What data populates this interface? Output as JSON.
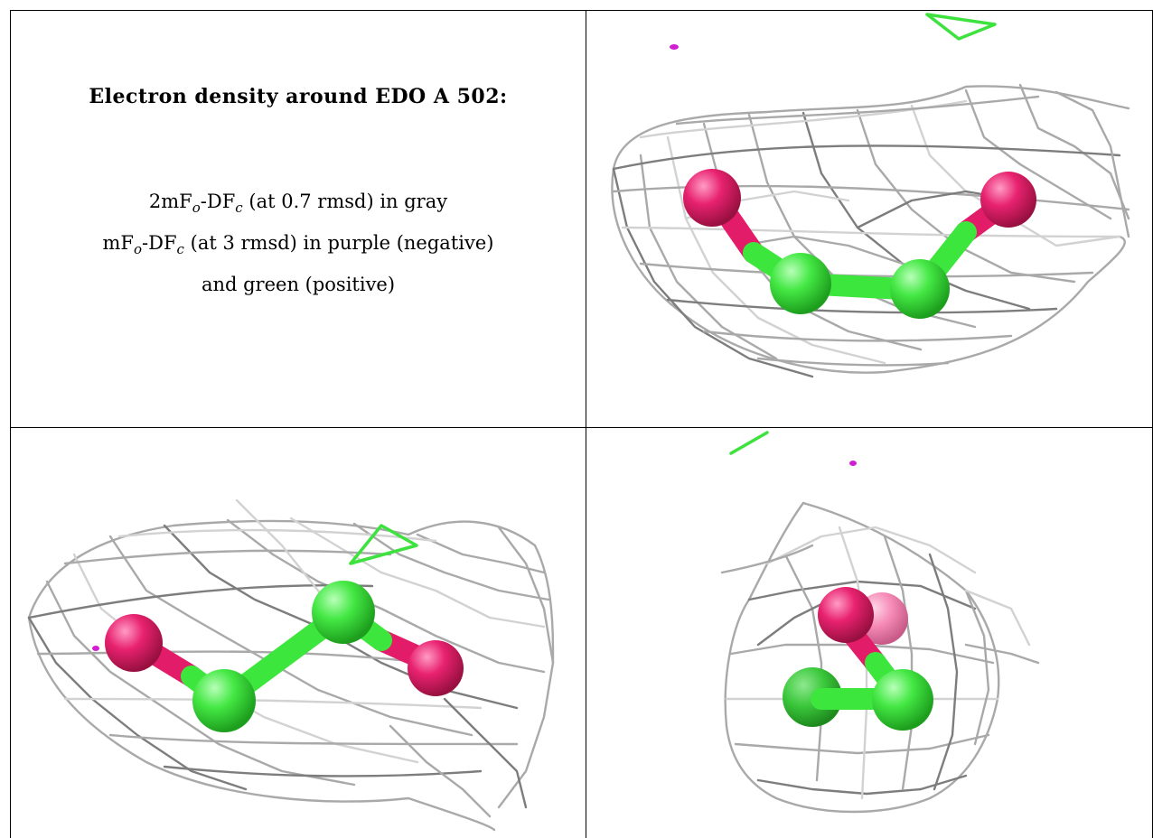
{
  "title": "Electron density around EDO A 502:",
  "legend": {
    "line1_prefix": "2mF",
    "line1_sub_o": "o",
    "line1_mid": "-DF",
    "line1_sub_c": "c",
    "line1_suffix": " (at 0.7 rmsd) in gray",
    "line2_prefix": "mF",
    "line2_sub_o": "o",
    "line2_mid": "-DF",
    "line2_sub_c": "c",
    "line2_suffix": " (at 3 rmsd) in purple (negative)",
    "line3": "and green (positive)"
  },
  "colors": {
    "mesh": "#a9a9a9",
    "carbon": "#3ee23e",
    "oxygen": "#e21c68",
    "negative_density": "#d21ed2",
    "positive_density": "#3ee23e",
    "border": "#000000"
  },
  "views": [
    {
      "name": "view-top-right",
      "molecule": "EDO",
      "atoms": [
        "O",
        "C",
        "C",
        "O"
      ]
    },
    {
      "name": "view-bottom-left",
      "molecule": "EDO",
      "atoms": [
        "O",
        "C",
        "C",
        "O"
      ]
    },
    {
      "name": "view-bottom-right",
      "molecule": "EDO",
      "atoms": [
        "O",
        "C",
        "C",
        "O"
      ]
    }
  ]
}
